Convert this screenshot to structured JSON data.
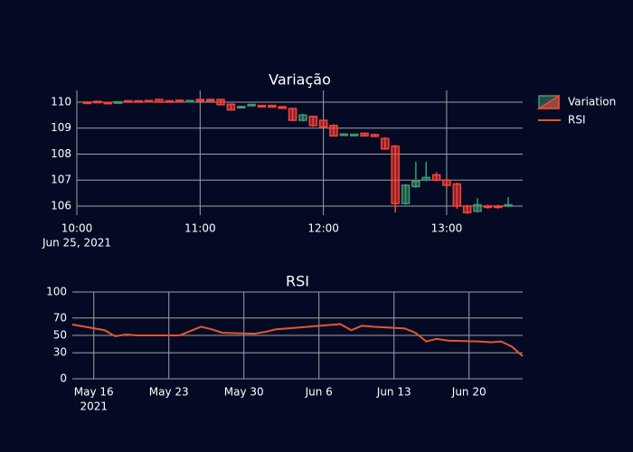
{
  "chart_data": [
    {
      "type": "candlestick",
      "title": "Variação",
      "x": [
        "2021-06-25 10:05",
        "2021-06-25 10:10",
        "2021-06-25 10:15",
        "2021-06-25 10:20",
        "2021-06-25 10:25",
        "2021-06-25 10:30",
        "2021-06-25 10:35",
        "2021-06-25 10:40",
        "2021-06-25 10:45",
        "2021-06-25 10:50",
        "2021-06-25 10:55",
        "2021-06-25 11:00",
        "2021-06-25 11:05",
        "2021-06-25 11:10",
        "2021-06-25 11:15",
        "2021-06-25 11:20",
        "2021-06-25 11:25",
        "2021-06-25 11:30",
        "2021-06-25 11:35",
        "2021-06-25 11:40",
        "2021-06-25 11:45",
        "2021-06-25 11:50",
        "2021-06-25 11:55",
        "2021-06-25 12:00",
        "2021-06-25 12:05",
        "2021-06-25 12:10",
        "2021-06-25 12:15",
        "2021-06-25 12:20",
        "2021-06-25 12:25",
        "2021-06-25 12:30",
        "2021-06-25 12:35",
        "2021-06-25 12:40",
        "2021-06-25 12:45",
        "2021-06-25 12:50",
        "2021-06-25 12:55",
        "2021-06-25 13:00",
        "2021-06-25 13:05",
        "2021-06-25 13:10",
        "2021-06-25 13:15",
        "2021-06-25 13:20",
        "2021-06-25 13:25",
        "2021-06-25 13:30"
      ],
      "series": [
        {
          "name": "Variation",
          "increasing_color": "#3d9970",
          "decreasing_color": "#ff4136",
          "open": [
            110.0,
            110.03,
            109.99,
            109.97,
            110.05,
            110.05,
            110.06,
            110.1,
            110.05,
            110.07,
            110.04,
            110.1,
            110.1,
            110.1,
            109.92,
            109.8,
            109.88,
            109.87,
            109.87,
            109.82,
            109.75,
            109.3,
            109.45,
            109.3,
            109.1,
            108.73,
            108.74,
            108.8,
            108.75,
            108.6,
            108.3,
            106.1,
            106.75,
            107.0,
            107.2,
            107.0,
            106.85,
            106.0,
            105.8,
            106.0,
            106.0,
            106.0
          ],
          "high": [
            110.03,
            110.05,
            110.01,
            110.03,
            110.07,
            110.07,
            110.08,
            110.13,
            110.07,
            110.09,
            110.08,
            110.13,
            110.13,
            110.12,
            109.95,
            109.85,
            109.93,
            109.89,
            109.89,
            109.85,
            109.78,
            109.55,
            109.48,
            109.35,
            109.15,
            108.8,
            108.78,
            108.83,
            108.78,
            108.65,
            108.35,
            106.85,
            107.7,
            107.7,
            107.3,
            107.05,
            106.9,
            106.05,
            106.3,
            106.05,
            106.05,
            106.35
          ],
          "low": [
            109.95,
            109.97,
            109.94,
            109.95,
            110.0,
            110.01,
            110.02,
            109.98,
            110.0,
            110.0,
            110.02,
            110.03,
            110.03,
            109.88,
            109.68,
            109.78,
            109.86,
            109.81,
            109.79,
            109.74,
            109.28,
            109.25,
            109.05,
            109.02,
            108.68,
            108.7,
            108.72,
            108.68,
            108.66,
            108.18,
            105.75,
            106.05,
            106.7,
            106.95,
            106.95,
            106.75,
            105.9,
            105.7,
            105.75,
            105.9,
            105.9,
            105.95
          ],
          "close": [
            109.97,
            109.99,
            109.96,
            110.01,
            110.02,
            110.03,
            110.04,
            110.0,
            110.02,
            110.02,
            110.06,
            110.05,
            110.05,
            109.9,
            109.7,
            109.83,
            109.91,
            109.83,
            109.81,
            109.76,
            109.3,
            109.5,
            109.1,
            109.05,
            108.7,
            108.77,
            108.76,
            108.7,
            108.68,
            108.2,
            106.1,
            106.8,
            106.95,
            107.1,
            107.0,
            106.8,
            106.0,
            105.75,
            106.05,
            105.95,
            105.95,
            106.05
          ]
        }
      ],
      "xlim": [
        "2021-06-25 10:00",
        "2021-06-25 13:37"
      ],
      "xticks": [
        {
          "value": "2021-06-25 10:00",
          "label": "10:00"
        },
        {
          "value": "2021-06-25 11:00",
          "label": "11:00"
        },
        {
          "value": "2021-06-25 12:00",
          "label": "12:00"
        },
        {
          "value": "2021-06-25 13:00",
          "label": "13:00"
        }
      ],
      "xtick_sublabel": "Jun 25, 2021",
      "ylim": [
        105.65,
        110.45
      ],
      "yticks": [
        106,
        107,
        108,
        109,
        110
      ],
      "grid": true,
      "legend": "top-right"
    },
    {
      "type": "line",
      "title": "RSI",
      "x": [
        "2021-05-14",
        "2021-05-17",
        "2021-05-18",
        "2021-05-19",
        "2021-05-20",
        "2021-05-21",
        "2021-05-24",
        "2021-05-25",
        "2021-05-26",
        "2021-05-27",
        "2021-05-28",
        "2021-05-31",
        "2021-06-01",
        "2021-06-02",
        "2021-06-03",
        "2021-06-04",
        "2021-06-07",
        "2021-06-08",
        "2021-06-09",
        "2021-06-10",
        "2021-06-11",
        "2021-06-14",
        "2021-06-15",
        "2021-06-16",
        "2021-06-17",
        "2021-06-18",
        "2021-06-21",
        "2021-06-22",
        "2021-06-23",
        "2021-06-24",
        "2021-06-25"
      ],
      "series": [
        {
          "name": "RSI",
          "color": "#e4572e",
          "values": [
            62.5,
            56,
            49,
            51,
            50,
            50,
            50,
            55,
            60,
            57,
            53,
            52,
            54,
            57,
            58,
            59,
            62,
            63,
            56,
            61,
            60,
            58,
            53,
            43,
            46,
            44,
            43,
            42,
            43,
            37,
            26
          ]
        }
      ],
      "xlim": [
        "2021-05-14",
        "2021-06-25"
      ],
      "xticks": [
        {
          "value": "2021-05-16",
          "label": "May 16"
        },
        {
          "value": "2021-05-23",
          "label": "May 23"
        },
        {
          "value": "2021-05-30",
          "label": "May 30"
        },
        {
          "value": "2021-06-06",
          "label": "Jun 6"
        },
        {
          "value": "2021-06-13",
          "label": "Jun 13"
        },
        {
          "value": "2021-06-20",
          "label": "Jun 20"
        }
      ],
      "xtick_sublabel": "2021",
      "ylim": [
        0,
        100
      ],
      "yticks": [
        0,
        30,
        50,
        70,
        100
      ],
      "grid": true
    }
  ]
}
